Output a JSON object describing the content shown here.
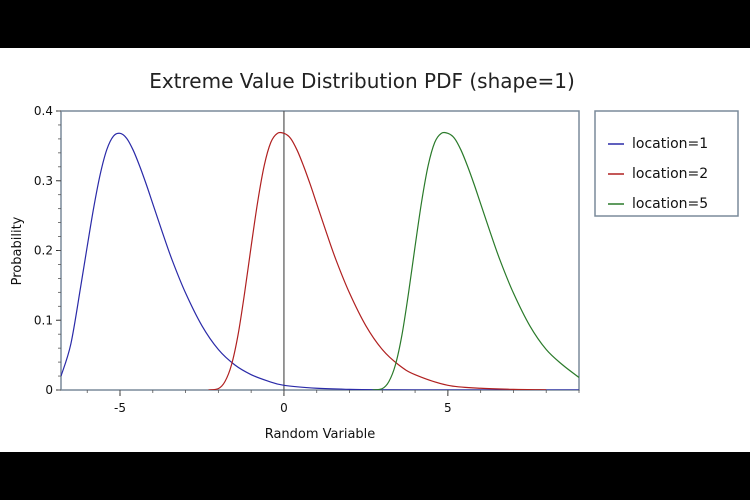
{
  "chart_data": {
    "type": "line",
    "title": "Extreme Value Distribution PDF (shape=1)",
    "xlabel": "Random Variable",
    "ylabel": "Probability",
    "xlim": [
      -6.8,
      9.0
    ],
    "ylim": [
      0,
      0.4
    ],
    "xticks": [
      -5,
      0,
      5
    ],
    "xtick_labels": [
      "-5",
      "0",
      "5"
    ],
    "yticks": [
      0,
      0.1,
      0.2,
      0.3,
      0.4
    ],
    "ytick_labels": [
      "0",
      "0.1",
      "0.2",
      "0.3",
      "0.4"
    ],
    "grid": false,
    "legend_position": "right",
    "series": [
      {
        "name": "location=1",
        "color": "#2a2aa8",
        "x": [
          -6.8,
          -6.5,
          -6.2,
          -6.0,
          -5.8,
          -5.6,
          -5.4,
          -5.2,
          -5.0,
          -4.8,
          -4.6,
          -4.4,
          -4.2,
          -4.0,
          -3.7,
          -3.4,
          -3.0,
          -2.5,
          -2.0,
          -1.5,
          -1.0,
          -0.5,
          0.0,
          1.0,
          2.0,
          3.0,
          4.0,
          6.0,
          9.0
        ],
        "values": [
          0.02,
          0.066,
          0.148,
          0.206,
          0.262,
          0.31,
          0.345,
          0.364,
          0.368,
          0.361,
          0.344,
          0.321,
          0.295,
          0.267,
          0.225,
          0.185,
          0.139,
          0.092,
          0.058,
          0.036,
          0.022,
          0.013,
          0.0067,
          0.0025,
          0.0009,
          0.0003,
          0.0001,
          0.0,
          0.0
        ]
      },
      {
        "name": "location=2",
        "color": "#b02020",
        "x": [
          -2.3,
          -2.0,
          -1.8,
          -1.6,
          -1.4,
          -1.2,
          -1.0,
          -0.8,
          -0.6,
          -0.4,
          -0.2,
          0.0,
          0.2,
          0.4,
          0.6,
          0.8,
          1.0,
          1.3,
          1.6,
          2.0,
          2.5,
          3.0,
          3.5,
          4.0,
          5.0,
          6.0,
          7.0,
          8.0
        ],
        "values": [
          0.0,
          0.002,
          0.012,
          0.036,
          0.079,
          0.139,
          0.206,
          0.27,
          0.322,
          0.355,
          0.368,
          0.368,
          0.361,
          0.344,
          0.321,
          0.295,
          0.267,
          0.225,
          0.185,
          0.139,
          0.092,
          0.058,
          0.036,
          0.022,
          0.0067,
          0.0025,
          0.0009,
          0.0003
        ]
      },
      {
        "name": "location=5",
        "color": "#2a7a2a",
        "x": [
          2.7,
          3.0,
          3.2,
          3.4,
          3.6,
          3.8,
          4.0,
          4.2,
          4.4,
          4.6,
          4.8,
          5.0,
          5.2,
          5.4,
          5.6,
          5.8,
          6.0,
          6.3,
          6.6,
          7.0,
          7.5,
          8.0,
          8.5,
          9.0
        ],
        "values": [
          0.0,
          0.002,
          0.012,
          0.036,
          0.079,
          0.139,
          0.206,
          0.27,
          0.322,
          0.355,
          0.368,
          0.368,
          0.361,
          0.344,
          0.321,
          0.295,
          0.267,
          0.225,
          0.185,
          0.139,
          0.092,
          0.058,
          0.036,
          0.018
        ]
      }
    ]
  }
}
